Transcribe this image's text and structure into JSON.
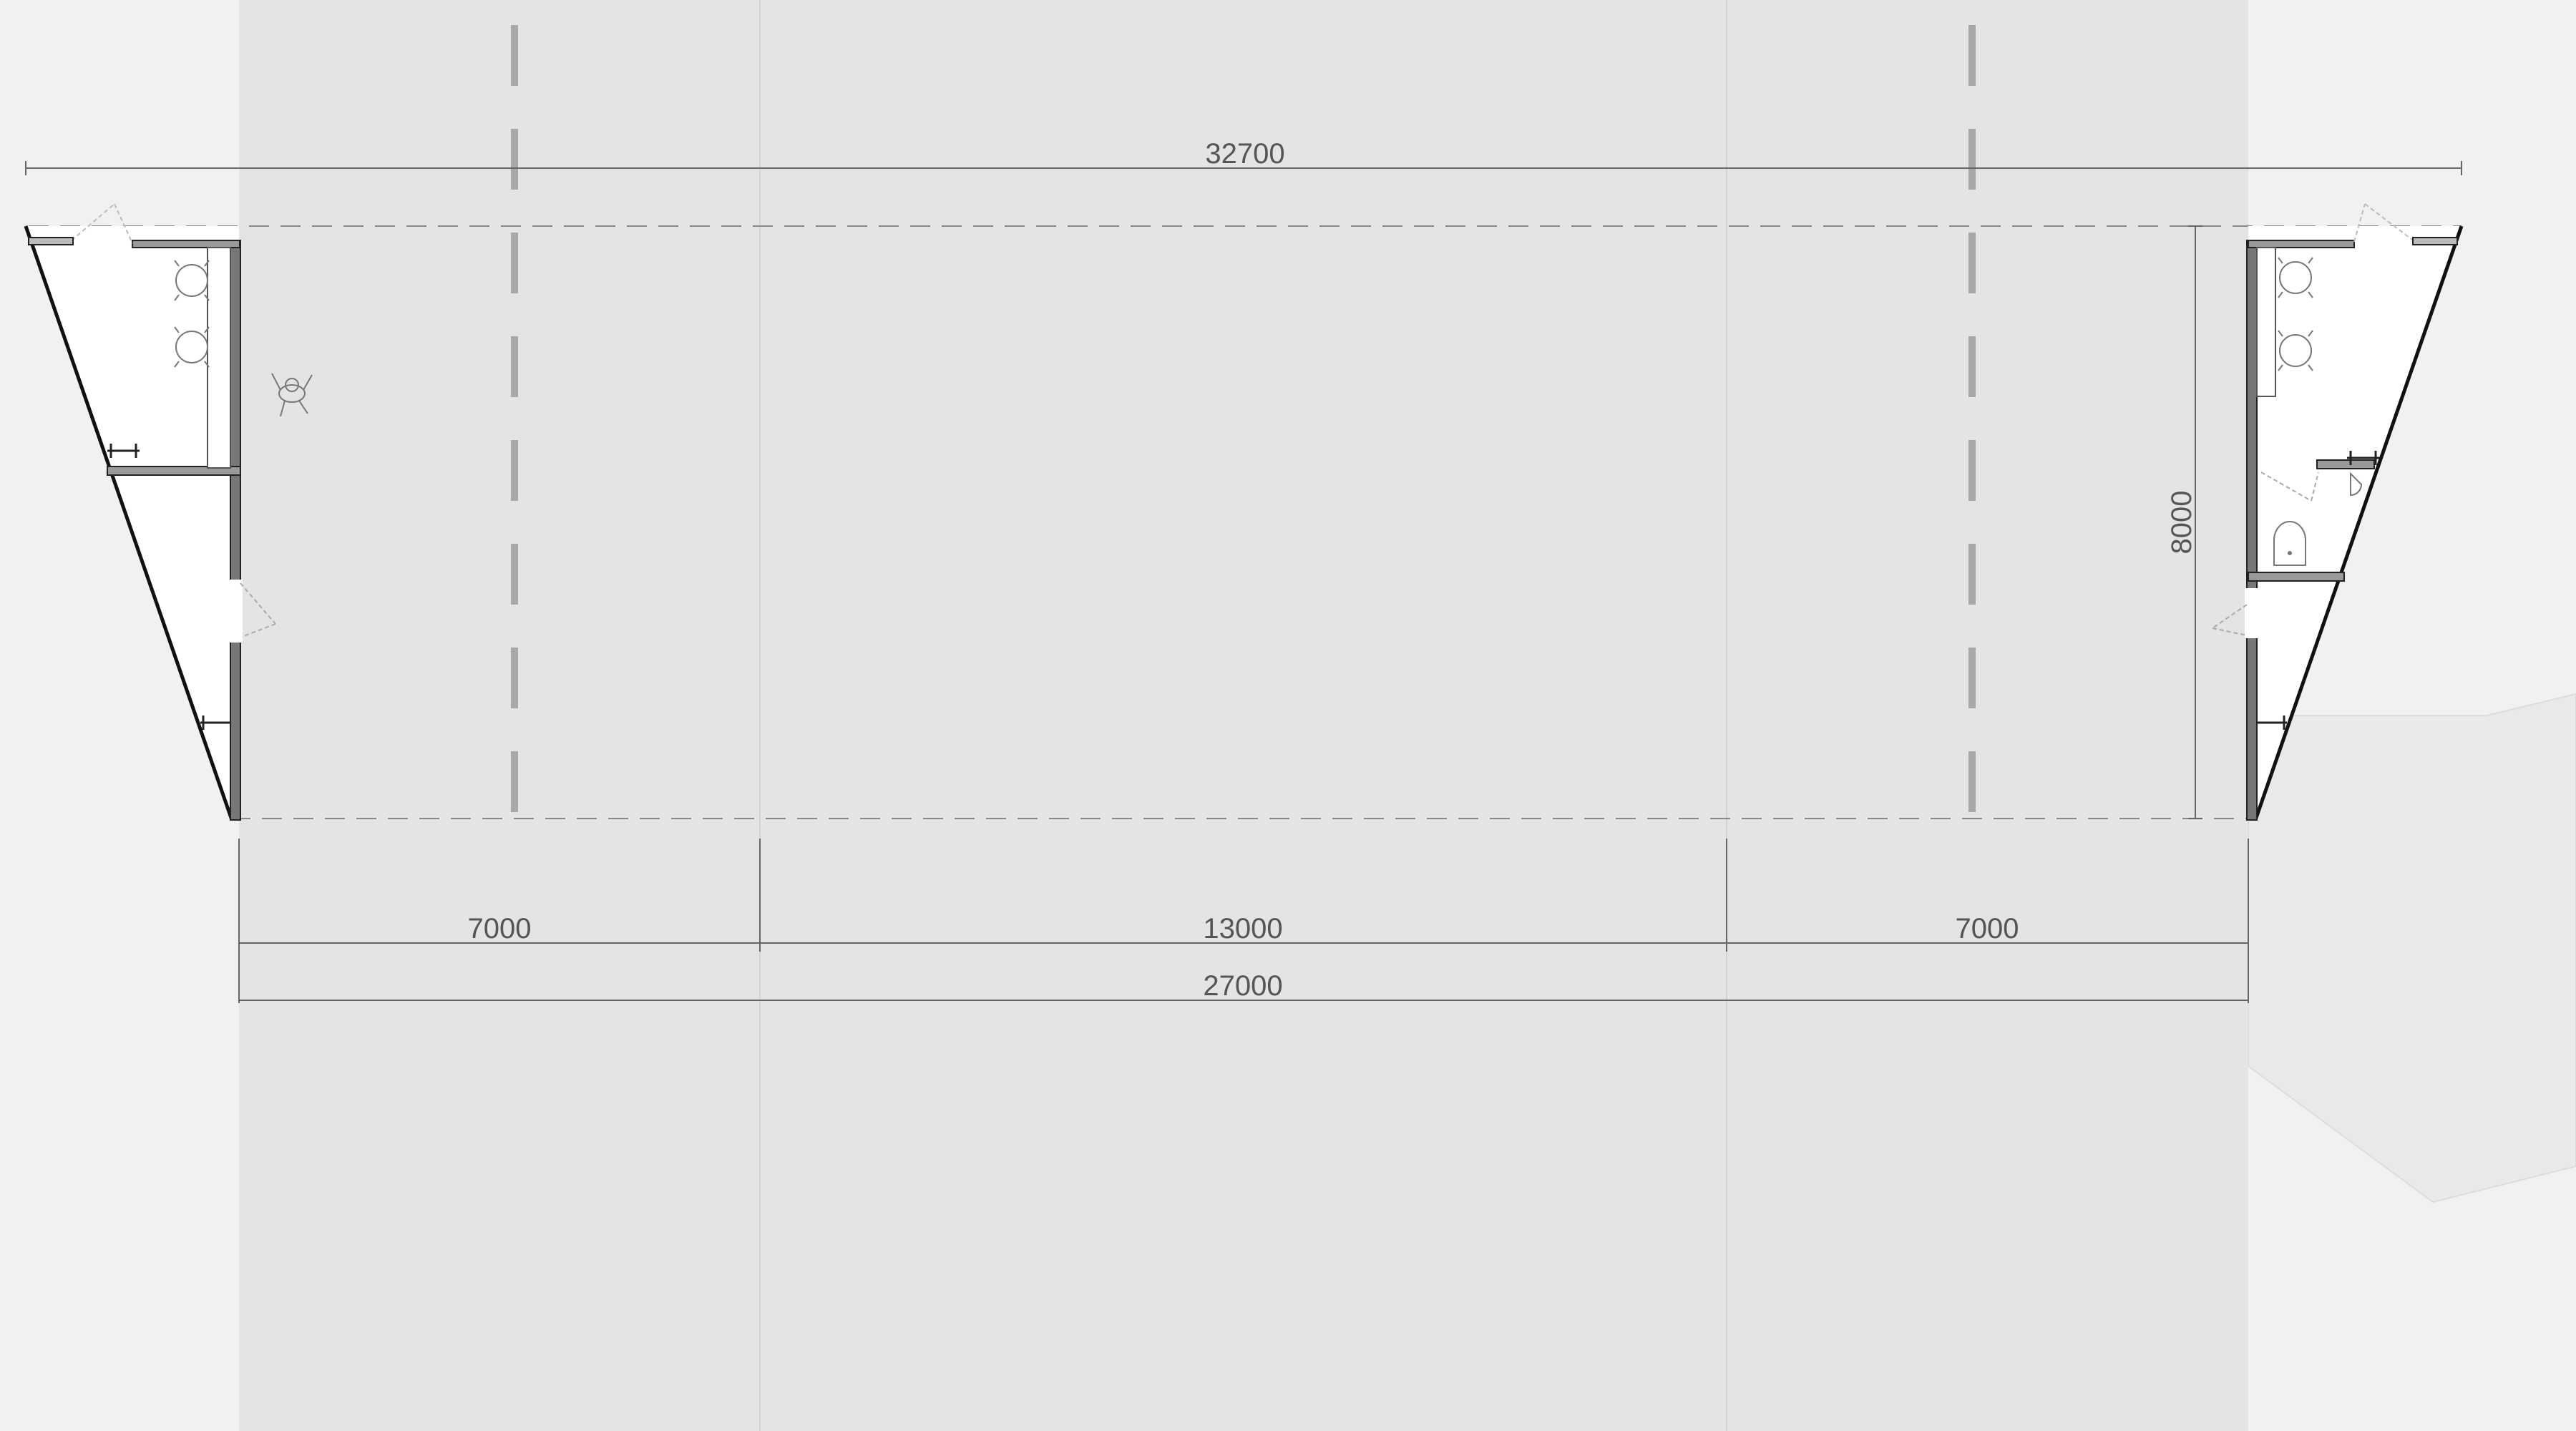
{
  "colors": {
    "background": "#f1f1f1",
    "road": "#e4e4e4",
    "lane_divider": "#d2d2d2",
    "lane_marking": "#a8a8a8",
    "wall": "#111111",
    "interior": "#ffffff",
    "dimension": "#555555"
  },
  "dimensions": {
    "overall_width": "32700",
    "span_width": "27000",
    "left_segment": "7000",
    "middle_segment": "13000",
    "right_segment": "7000",
    "depth": "8000"
  }
}
